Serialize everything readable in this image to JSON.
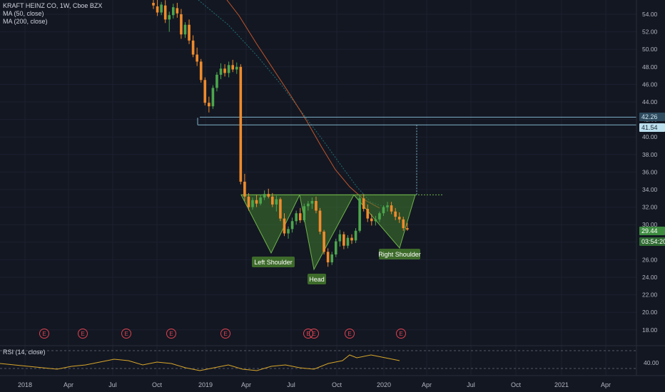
{
  "legend": {
    "symbol": "KRAFT HEINZ CO, 1W, Cboe BZX",
    "ma50": "MA (50, close)",
    "ma200": "MA (200, close)",
    "rsi": "RSI (14, close)"
  },
  "price_tags": {
    "line_upper": "42.26",
    "line_lower": "41.54",
    "last_price": "29.44",
    "countdown": "03:54:20"
  },
  "colors": {
    "background": "#131722",
    "up_candle": "#4ca64c",
    "down_candle": "#f08b2c",
    "ma50": "#1f6f73",
    "ma200": "#c0562a",
    "rsi_line": "#d8a62a",
    "pattern_fill": "#3f7a2d",
    "pattern_edge": "#6fb34a",
    "earnings": "#e0414f",
    "neckline": "#6fb34a",
    "horizontal_line": "#7fb3c9"
  },
  "chart_data": {
    "type": "candlestick",
    "title": "KRAFT HEINZ CO, 1W, Cboe BZX",
    "y_axis_ticks": [
      54,
      52,
      50,
      48,
      46,
      44,
      42,
      40,
      38,
      36,
      34,
      32,
      30,
      28,
      26,
      24,
      22,
      20,
      18
    ],
    "rsi_axis_ticks": [
      40
    ],
    "x_axis_ticks": [
      "2018",
      "Apr",
      "Jul",
      "Oct",
      "2019",
      "Apr",
      "Jul",
      "Oct",
      "2020",
      "Apr",
      "Jul",
      "Oct",
      "2021",
      "Apr"
    ],
    "candles_ohlc": [
      [
        55.3,
        55.9,
        54.6,
        55.0
      ],
      [
        54.9,
        55.7,
        53.8,
        54.2
      ],
      [
        54.2,
        55.4,
        53.9,
        55.1
      ],
      [
        55.0,
        55.6,
        53.0,
        53.4
      ],
      [
        53.4,
        54.3,
        52.0,
        53.9
      ],
      [
        53.9,
        55.2,
        53.5,
        54.8
      ],
      [
        54.7,
        55.3,
        53.6,
        54.1
      ],
      [
        54.0,
        54.6,
        51.2,
        51.7
      ],
      [
        51.7,
        53.1,
        51.3,
        52.8
      ],
      [
        52.8,
        53.4,
        50.6,
        51.0
      ],
      [
        51.0,
        51.6,
        49.1,
        49.4
      ],
      [
        49.4,
        50.2,
        48.1,
        48.6
      ],
      [
        48.6,
        48.9,
        46.2,
        46.5
      ],
      [
        46.5,
        46.8,
        43.6,
        43.9
      ],
      [
        43.9,
        44.6,
        42.8,
        43.5
      ],
      [
        43.5,
        45.9,
        43.2,
        45.6
      ],
      [
        45.6,
        47.4,
        45.2,
        47.1
      ],
      [
        47.1,
        48.4,
        46.6,
        47.8
      ],
      [
        47.8,
        48.3,
        46.9,
        47.3
      ],
      [
        47.3,
        48.6,
        46.8,
        48.2
      ],
      [
        48.2,
        48.8,
        47.4,
        47.7
      ],
      [
        47.7,
        48.5,
        47.2,
        48.0
      ],
      [
        48.0,
        48.3,
        34.6,
        34.9
      ],
      [
        34.9,
        35.8,
        32.7,
        33.2
      ],
      [
        33.2,
        33.6,
        31.6,
        32.0
      ],
      [
        32.0,
        33.1,
        31.7,
        32.8
      ],
      [
        32.8,
        33.4,
        32.0,
        32.4
      ],
      [
        32.4,
        33.4,
        32.2,
        33.1
      ],
      [
        33.1,
        33.9,
        32.8,
        33.5
      ],
      [
        33.5,
        34.1,
        33.0,
        33.2
      ],
      [
        33.2,
        33.6,
        32.0,
        32.3
      ],
      [
        32.3,
        33.3,
        31.5,
        32.9
      ],
      [
        32.9,
        33.1,
        30.4,
        30.7
      ],
      [
        30.7,
        31.3,
        28.7,
        29.0
      ],
      [
        29.0,
        29.8,
        28.4,
        29.5
      ],
      [
        29.5,
        30.8,
        29.1,
        30.4
      ],
      [
        30.4,
        31.6,
        30.0,
        31.3
      ],
      [
        31.3,
        31.9,
        30.2,
        30.5
      ],
      [
        30.5,
        32.4,
        30.3,
        32.1
      ],
      [
        32.1,
        32.7,
        31.6,
        32.4
      ],
      [
        32.4,
        33.1,
        31.8,
        32.7
      ],
      [
        32.7,
        33.2,
        31.3,
        31.6
      ],
      [
        31.6,
        31.9,
        28.9,
        29.2
      ],
      [
        29.2,
        29.4,
        26.6,
        26.9
      ],
      [
        26.9,
        27.3,
        25.2,
        25.7
      ],
      [
        25.7,
        26.9,
        25.4,
        26.6
      ],
      [
        26.6,
        28.4,
        26.3,
        28.1
      ],
      [
        28.1,
        29.4,
        27.5,
        28.9
      ],
      [
        28.9,
        29.2,
        27.2,
        27.6
      ],
      [
        27.6,
        28.8,
        27.3,
        28.5
      ],
      [
        28.5,
        28.9,
        27.8,
        28.2
      ],
      [
        28.2,
        29.6,
        27.9,
        29.3
      ],
      [
        29.3,
        33.3,
        29.1,
        33.0
      ],
      [
        33.0,
        33.5,
        31.5,
        31.8
      ],
      [
        31.8,
        32.3,
        30.3,
        30.7
      ],
      [
        30.7,
        31.2,
        29.9,
        30.4
      ],
      [
        30.4,
        31.0,
        29.9,
        30.6
      ],
      [
        30.6,
        31.5,
        30.3,
        31.3
      ],
      [
        31.3,
        32.2,
        31.0,
        32.0
      ],
      [
        32.0,
        32.6,
        31.5,
        32.2
      ],
      [
        32.2,
        32.6,
        31.2,
        31.5
      ],
      [
        31.5,
        31.9,
        30.5,
        30.9
      ],
      [
        30.9,
        31.4,
        30.2,
        30.6
      ],
      [
        30.6,
        30.9,
        29.3,
        29.6
      ],
      [
        29.6,
        30.2,
        29.3,
        29.44
      ]
    ],
    "horizontal_levels": [
      42.26,
      41.54
    ],
    "neckline": 33.4,
    "pattern_annotations": [
      "Left Shoulder",
      "Head",
      "Right Shoulder"
    ],
    "event_markers": [
      "E",
      "E",
      "E",
      "E",
      "E",
      "E",
      "E",
      "E",
      "E"
    ],
    "grid": true
  }
}
